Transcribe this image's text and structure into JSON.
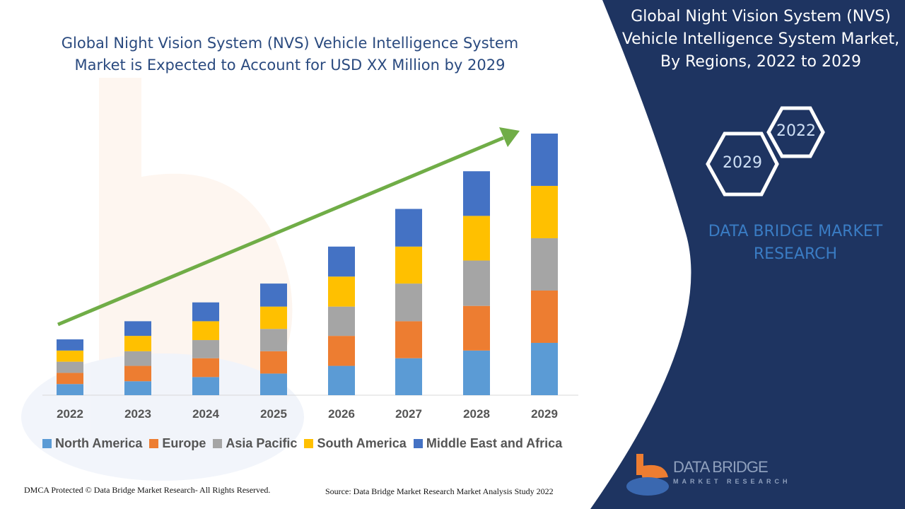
{
  "header": {
    "title_line1": "Global Night Vision System (NVS) Vehicle Intelligence System",
    "title_line2": "Market is Expected to Account for USD XX Million by 2029"
  },
  "side_panel": {
    "title_line1": "Global Night Vision System (NVS)",
    "title_line2": "Vehicle Intelligence System Market,",
    "title_line3": "By Regions, 2022 to 2029",
    "hex_start": "2022",
    "hex_end": "2029",
    "brand_line1": "DATA BRIDGE MARKET",
    "brand_line2": "RESEARCH",
    "logo_text": "DATA BRIDGE",
    "logo_subtext": "MARKET RESEARCH",
    "panel_color": "#1e3461"
  },
  "footer": {
    "copyright": "DMCA Protected © Data Bridge Market Research- All Rights Reserved.",
    "source": "Source: Data Bridge Market Research Market Analysis Study 2022"
  },
  "chart_data": {
    "type": "bar",
    "stacked": true,
    "title": "",
    "xlabel": "",
    "ylabel": "",
    "y_axis_shown": false,
    "grid": false,
    "legend_position": "bottom",
    "trend_arrow": true,
    "trend_arrow_color": "#70ad47",
    "categories": [
      "2022",
      "2023",
      "2024",
      "2025",
      "2026",
      "2027",
      "2028",
      "2029"
    ],
    "ylim": [
      0,
      380
    ],
    "series": [
      {
        "name": "North America",
        "color": "#5b9bd5",
        "values": [
          16,
          20,
          26,
          31,
          42,
          53,
          64,
          75
        ]
      },
      {
        "name": "Europe",
        "color": "#ed7d31",
        "values": [
          16,
          22,
          27,
          32,
          43,
          53,
          64,
          75
        ]
      },
      {
        "name": "Asia Pacific",
        "color": "#a5a5a5",
        "values": [
          16,
          21,
          26,
          32,
          42,
          54,
          65,
          75
        ]
      },
      {
        "name": "South America",
        "color": "#ffc000",
        "values": [
          16,
          22,
          27,
          32,
          43,
          53,
          64,
          75
        ]
      },
      {
        "name": "Middle East and Africa",
        "color": "#4472c4",
        "values": [
          16,
          21,
          27,
          33,
          43,
          54,
          64,
          75
        ]
      }
    ]
  }
}
